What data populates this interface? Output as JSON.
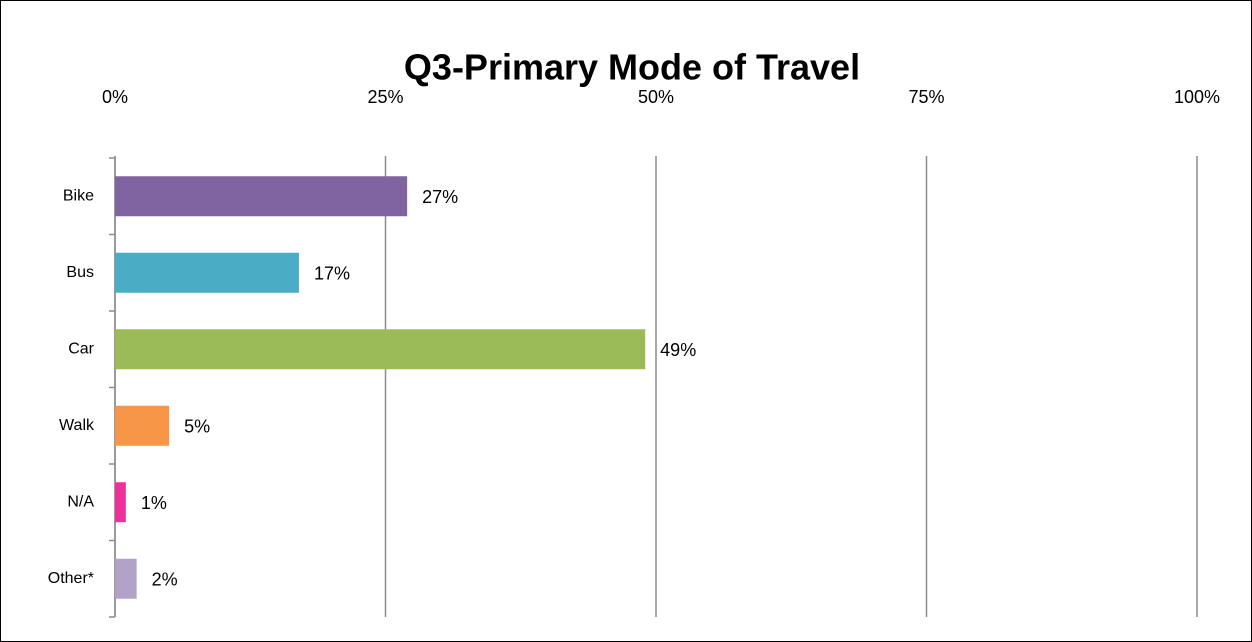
{
  "chart_data": {
    "type": "bar",
    "orientation": "horizontal",
    "title": "Q3-Primary Mode of Travel",
    "categories": [
      "Bike",
      "Bus",
      "Car",
      "Walk",
      "N/A",
      "Other*"
    ],
    "values": [
      27,
      17,
      49,
      5,
      1,
      2
    ],
    "value_labels": [
      "27%",
      "17%",
      "49%",
      "5%",
      "1%",
      "2%"
    ],
    "colors": [
      "#8064a2",
      "#4bacc6",
      "#9bbb59",
      "#f79646",
      "#f0309a",
      "#b3a2c7"
    ],
    "xlim": [
      0,
      100
    ],
    "xticks": [
      {
        "value": 0,
        "label": "0%"
      },
      {
        "value": 25,
        "label": "25%"
      },
      {
        "value": 50,
        "label": "50%"
      },
      {
        "value": 75,
        "label": "75%"
      },
      {
        "value": 100,
        "label": "100%"
      }
    ],
    "grid": true
  }
}
